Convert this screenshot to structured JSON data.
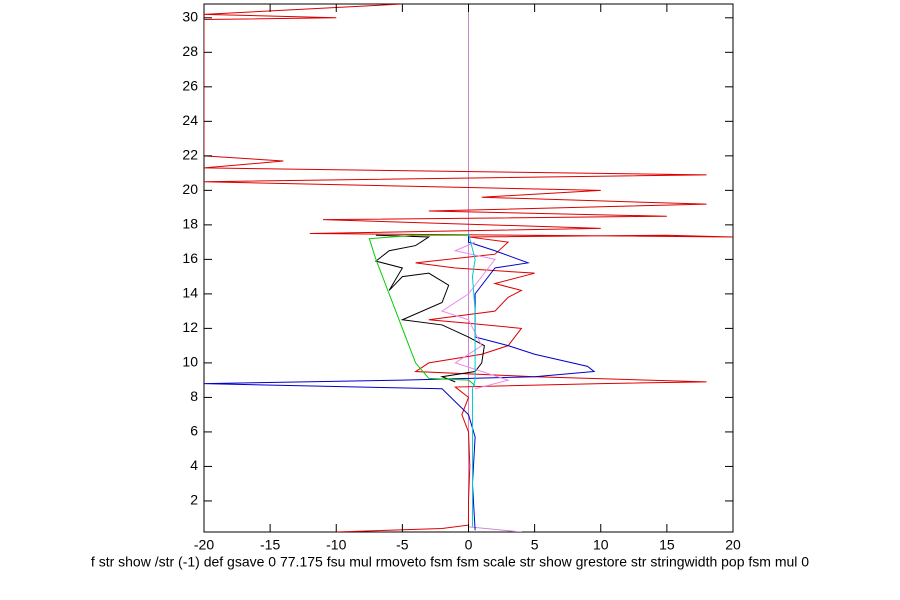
{
  "chart_data": {
    "type": "line",
    "xlabel": "f str show /str (-1) def gsave 0 77.175 fsu mul rmoveto fsm fsm scale str show grestore str stringwidth pop fsm mul 0",
    "xlim": [
      -20,
      20
    ],
    "ylim": [
      0.2,
      30.8
    ],
    "xticks": [
      -20,
      -15,
      -10,
      -5,
      0,
      5,
      10,
      15,
      20
    ],
    "yticks": [
      2,
      4,
      6,
      8,
      10,
      12,
      14,
      16,
      18,
      20,
      22,
      24,
      26,
      28,
      30
    ],
    "series": [
      {
        "color": "#cc88cc",
        "x": [
          4,
          0,
          0
        ],
        "y": [
          0.2,
          0.5,
          30.8
        ]
      },
      {
        "color": "#dd0000",
        "x": [
          -10,
          -2,
          0,
          0,
          0.1,
          0,
          -0.5,
          0,
          -1,
          10,
          18,
          5,
          -4,
          -3,
          1,
          3,
          4,
          0,
          -3,
          2,
          3,
          4,
          2,
          5,
          -1,
          -4,
          2,
          3,
          0,
          15,
          20,
          -12,
          10,
          -11,
          15,
          -3,
          18,
          1,
          10,
          -20,
          18,
          -20,
          -14,
          -20,
          -20,
          -10,
          -20,
          -5
        ],
        "y": [
          0.2,
          0.4,
          0.6,
          2,
          4,
          6,
          7,
          8,
          8.6,
          8.8,
          8.9,
          9.2,
          9.5,
          10,
          10.5,
          11,
          12,
          12.3,
          12.5,
          13,
          13.8,
          14.2,
          14.6,
          15.2,
          15.5,
          15.8,
          16.3,
          17,
          17.3,
          17.4,
          17.3,
          17.5,
          17.8,
          18.3,
          18.5,
          18.8,
          19.2,
          19.6,
          20,
          20.5,
          20.9,
          21.3,
          21.7,
          22,
          29.9,
          30,
          30.2,
          30.8
        ]
      },
      {
        "color": "#0000cc",
        "x": [
          0.5,
          0.3,
          0.5,
          0,
          -2,
          -20,
          -5,
          5,
          9.5,
          9,
          5,
          3,
          0.5,
          0.5,
          2,
          4.5,
          2,
          0,
          0
        ],
        "y": [
          0.3,
          3,
          5.7,
          7,
          8.5,
          8.8,
          9,
          9.2,
          9.5,
          9.8,
          10.5,
          11,
          11.5,
          14,
          15.5,
          15.8,
          16.5,
          17,
          17.5
        ]
      },
      {
        "color": "#000000",
        "x": [
          -1,
          -2,
          0.5,
          1,
          1.2,
          0,
          -2,
          -5,
          -2,
          -1.5,
          -3,
          -5,
          -6,
          -5,
          -7,
          -6,
          -4,
          -3,
          -7
        ],
        "y": [
          8.9,
          9.2,
          9.5,
          10,
          11,
          11.5,
          12.2,
          12.5,
          13.5,
          14.5,
          15.2,
          15,
          14.2,
          15.5,
          15.9,
          16.5,
          16.8,
          17.3,
          17.4
        ]
      },
      {
        "color": "#00cc00",
        "x": [
          0.5,
          0,
          -3,
          -4,
          -5,
          -6,
          -7,
          -7.5,
          -4,
          0
        ],
        "y": [
          8.7,
          9,
          9.1,
          10,
          12,
          14,
          16,
          17.2,
          17.4,
          17.4
        ]
      },
      {
        "color": "#ee88ee",
        "x": [
          0.5,
          3,
          -1,
          1,
          0,
          -2,
          0,
          2,
          -1,
          0.5
        ],
        "y": [
          8.5,
          9,
          10,
          11,
          12.5,
          13,
          14,
          16,
          16.5,
          17
        ]
      },
      {
        "color": "#00cccc",
        "x": [
          0.3,
          0.3,
          0.5,
          0.5,
          0.3,
          0.5,
          0
        ],
        "y": [
          0.5,
          8.5,
          9,
          13,
          15,
          16,
          17.5
        ]
      }
    ]
  }
}
